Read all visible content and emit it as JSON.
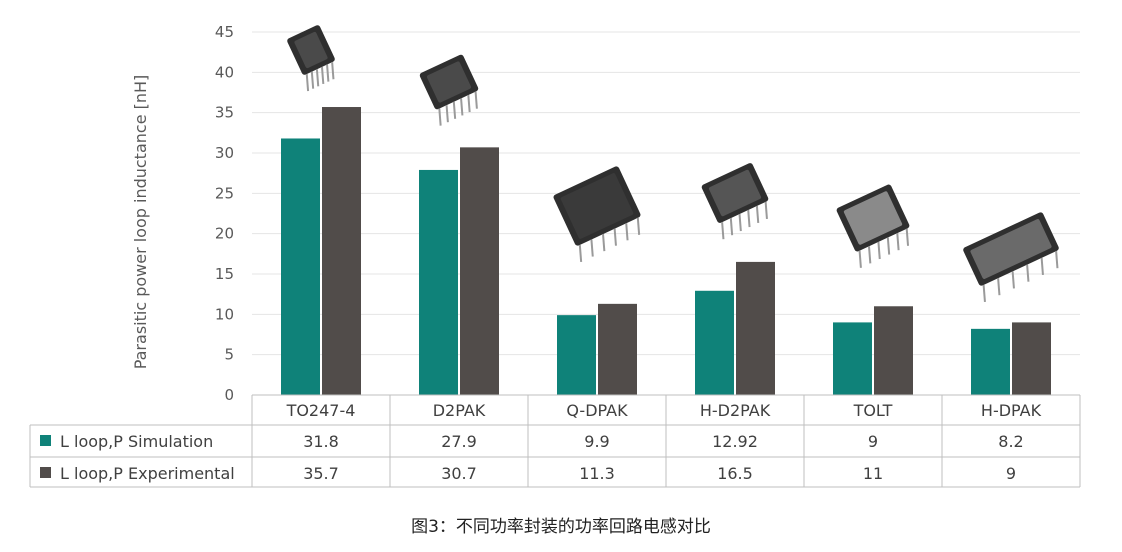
{
  "chart_data": {
    "type": "bar",
    "ylabel": "Parasitic power loop inductance [nH]",
    "ylim": [
      0,
      45
    ],
    "yticks": [
      0,
      5,
      10,
      15,
      20,
      25,
      30,
      35,
      40,
      45
    ],
    "grid": true,
    "categories": [
      "TO247-4",
      "D2PAK",
      "Q-DPAK",
      "H-D2PAK",
      "TOLT",
      "H-DPAK"
    ],
    "series": [
      {
        "name": "L loop,P Simulation",
        "color": "#0f8279",
        "values": [
          31.8,
          27.9,
          9.9,
          12.92,
          9,
          8.2
        ],
        "labels": [
          "31.8",
          "27.9",
          "9.9",
          "12.92",
          "9",
          "8.2"
        ]
      },
      {
        "name": "L loop,P Experimental",
        "color": "#514c4a",
        "values": [
          35.7,
          30.7,
          11.3,
          16.5,
          11,
          9
        ],
        "labels": [
          "35.7",
          "30.7",
          "11.3",
          "16.5",
          "11",
          "9"
        ]
      }
    ],
    "legend": "data-table-left"
  },
  "caption": "图3：不同功率封装的功率回路电感对比"
}
